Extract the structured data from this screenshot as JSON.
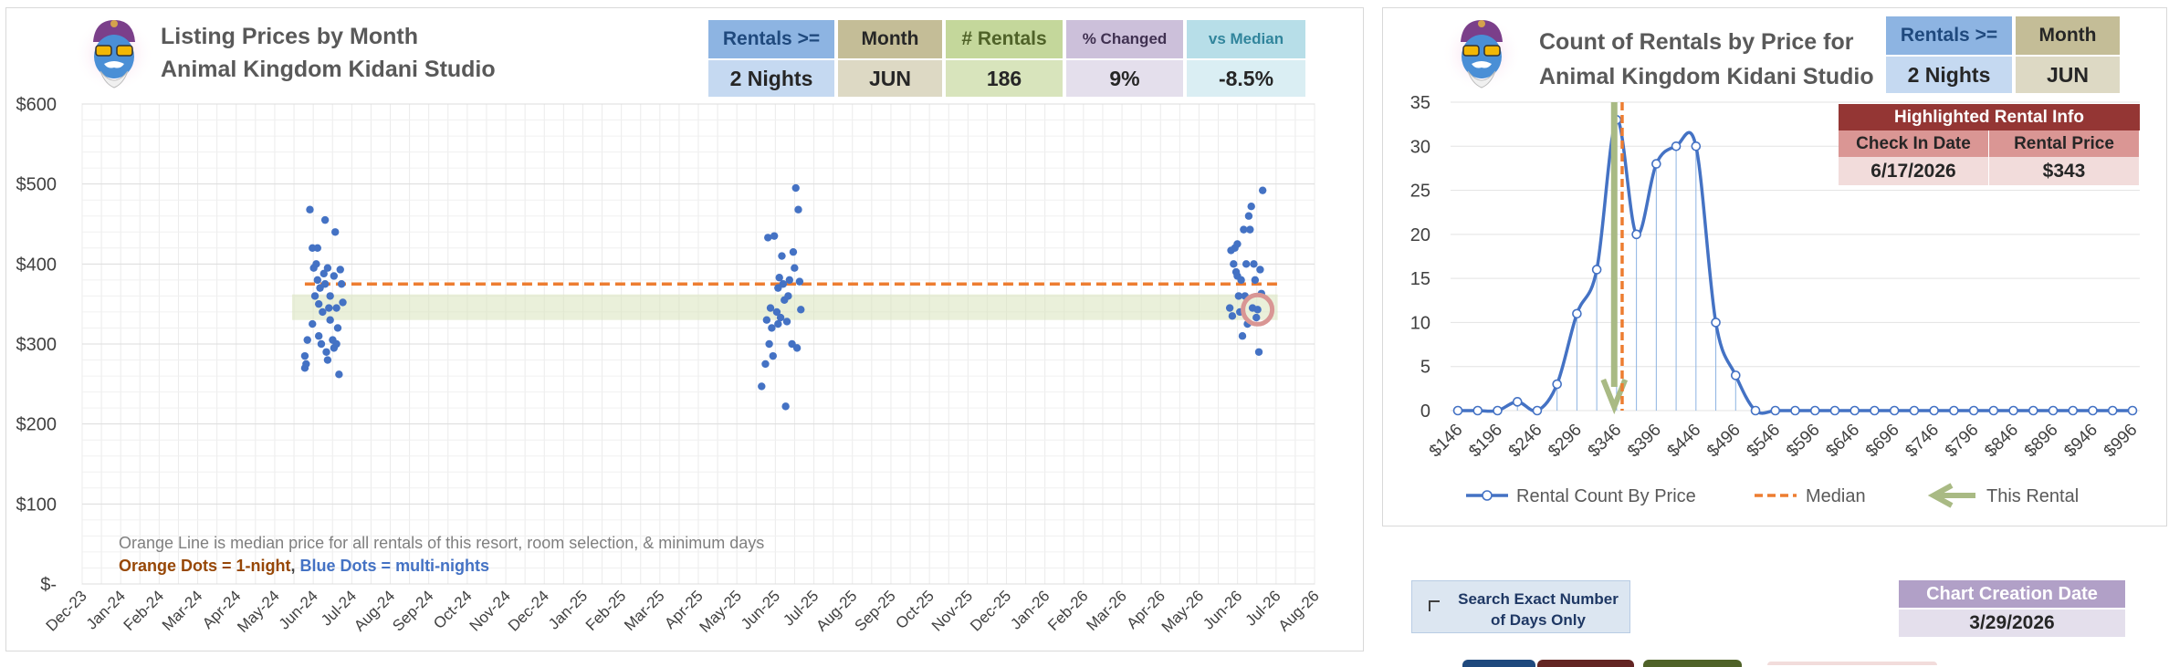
{
  "colors": {
    "blue_dots": "#4472c4",
    "orange_median": "#ed7d31",
    "band_green": "#d8e4bc",
    "arrow_green": "#a9ba84",
    "line_blue": "#4472c4"
  },
  "left": {
    "title_line1": "Listing Prices by Month",
    "title_line2": "Animal Kingdom Kidani Studio",
    "kpis": [
      {
        "header": "Rentals >=",
        "value": "2 Nights",
        "hd_bg": "#8db4e2",
        "hd_color": "#1f497d",
        "vl_bg": "#c5d9f1",
        "small": false
      },
      {
        "header": "Month",
        "value": "JUN",
        "hd_bg": "#c4bd97",
        "hd_color": "#262626",
        "vl_bg": "#ddd9c4",
        "small": false
      },
      {
        "header": "# Rentals",
        "value": "186",
        "hd_bg": "#c4d79b",
        "hd_color": "#4f6228",
        "vl_bg": "#d8e4bc",
        "small": false
      },
      {
        "header": "% Changed",
        "value": "9%",
        "hd_bg": "#ccc0da",
        "hd_color": "#403151",
        "vl_bg": "#e4dfec",
        "small": true
      },
      {
        "header": "vs Median",
        "value": "-8.5%",
        "hd_bg": "#b7dee8",
        "hd_color": "#31859c",
        "vl_bg": "#daeef3",
        "small": true
      }
    ],
    "note_line1": "Orange Line is median price for all rentals of this resort, room selection, & minimum days",
    "note_orange": "Orange Dots = 1-night",
    "note_sep": ", ",
    "note_blue": "Blue Dots = multi-nights"
  },
  "right": {
    "title_line1": "Count of Rentals by Price for",
    "title_line2": "Animal Kingdom Kidani Studio",
    "kpis": [
      {
        "header": "Rentals >=",
        "value": "2 Nights",
        "hd_bg": "#8db4e2",
        "hd_color": "#1f497d",
        "vl_bg": "#c5d9f1",
        "small": false
      },
      {
        "header": "Month",
        "value": "JUN",
        "hd_bg": "#c4bd97",
        "hd_color": "#262626",
        "vl_bg": "#ddd9c4",
        "small": false
      }
    ],
    "highlight": {
      "title": "Highlighted Rental Info",
      "col1_header": "Check In Date",
      "col2_header": "Rental Price",
      "col1_value": "6/17/2026",
      "col2_value": "$343"
    }
  },
  "controls": {
    "search_exact_label": "Search Exact Number of Days Only",
    "creation_header": "Chart Creation Date",
    "creation_value": "3/29/2026"
  },
  "chart_data": [
    {
      "type": "scatter",
      "title": "Listing Prices by Month",
      "subtitle": "Animal Kingdom Kidani Studio",
      "x_ticks": [
        "Dec-23",
        "Jan-24",
        "Feb-24",
        "Mar-24",
        "Apr-24",
        "May-24",
        "Jun-24",
        "Jul-24",
        "Aug-24",
        "Sep-24",
        "Oct-24",
        "Nov-24",
        "Dec-24",
        "Jan-25",
        "Feb-25",
        "Mar-25",
        "Apr-25",
        "May-25",
        "Jun-25",
        "Jul-25",
        "Aug-25",
        "Sep-25",
        "Oct-25",
        "Nov-25",
        "Dec-25",
        "Jan-26",
        "Feb-26",
        "Mar-26",
        "Apr-26",
        "May-26",
        "Jun-26",
        "Jul-26",
        "Aug-26"
      ],
      "y_ticks": [
        "$-",
        "$100",
        "$200",
        "$300",
        "$400",
        "$500",
        "$600"
      ],
      "ylim": [
        0,
        600
      ],
      "median_price": 375,
      "median_range": [
        "2024-05-25",
        "2026-06-30"
      ],
      "band": [
        330,
        362
      ],
      "highlighted_point": {
        "x": "2026-06-17",
        "y": 343
      },
      "series": [
        {
          "name": "Blue Dots = multi-nights",
          "points": [
            [
              "2024-05-25",
              270
            ],
            [
              "2024-05-25",
              285
            ],
            [
              "2024-05-26",
              275
            ],
            [
              "2024-05-27",
              305
            ],
            [
              "2024-05-29",
              468
            ],
            [
              "2024-05-31",
              420
            ],
            [
              "2024-05-31",
              325
            ],
            [
              "2024-06-01",
              395
            ],
            [
              "2024-06-02",
              360
            ],
            [
              "2024-06-03",
              400
            ],
            [
              "2024-06-04",
              420
            ],
            [
              "2024-06-04",
              380
            ],
            [
              "2024-06-05",
              350
            ],
            [
              "2024-06-05",
              310
            ],
            [
              "2024-06-06",
              370
            ],
            [
              "2024-06-07",
              300
            ],
            [
              "2024-06-08",
              340
            ],
            [
              "2024-06-09",
              388
            ],
            [
              "2024-06-10",
              455
            ],
            [
              "2024-06-10",
              375
            ],
            [
              "2024-06-11",
              290
            ],
            [
              "2024-06-12",
              280
            ],
            [
              "2024-06-12",
              395
            ],
            [
              "2024-06-13",
              345
            ],
            [
              "2024-06-14",
              360
            ],
            [
              "2024-06-14",
              330
            ],
            [
              "2024-06-16",
              305
            ],
            [
              "2024-06-17",
              385
            ],
            [
              "2024-06-17",
              295
            ],
            [
              "2024-06-18",
              440
            ],
            [
              "2024-06-19",
              345
            ],
            [
              "2024-06-19",
              300
            ],
            [
              "2024-06-20",
              320
            ],
            [
              "2024-06-21",
              262
            ],
            [
              "2024-06-22",
              393
            ],
            [
              "2024-06-23",
              375
            ],
            [
              "2024-06-24",
              352
            ],
            [
              "2025-05-21",
              247
            ],
            [
              "2025-05-24",
              275
            ],
            [
              "2025-05-25",
              330
            ],
            [
              "2025-05-26",
              433
            ],
            [
              "2025-05-27",
              300
            ],
            [
              "2025-05-28",
              345
            ],
            [
              "2025-05-29",
              320
            ],
            [
              "2025-05-30",
              285
            ],
            [
              "2025-05-31",
              435
            ],
            [
              "2025-06-02",
              340
            ],
            [
              "2025-06-03",
              370
            ],
            [
              "2025-06-03",
              325
            ],
            [
              "2025-06-04",
              383
            ],
            [
              "2025-06-05",
              333
            ],
            [
              "2025-06-06",
              410
            ],
            [
              "2025-06-07",
              375
            ],
            [
              "2025-06-08",
              355
            ],
            [
              "2025-06-09",
              222
            ],
            [
              "2025-06-10",
              328
            ],
            [
              "2025-06-11",
              360
            ],
            [
              "2025-06-12",
              380
            ],
            [
              "2025-06-14",
              300
            ],
            [
              "2025-06-15",
              415
            ],
            [
              "2025-06-16",
              395
            ],
            [
              "2025-06-17",
              495
            ],
            [
              "2025-06-18",
              295
            ],
            [
              "2025-06-19",
              468
            ],
            [
              "2025-06-20",
              378
            ],
            [
              "2025-06-21",
              343
            ],
            [
              "2026-05-26",
              345
            ],
            [
              "2026-05-27",
              417
            ],
            [
              "2026-05-28",
              335
            ],
            [
              "2026-05-29",
              400
            ],
            [
              "2026-05-30",
              420
            ],
            [
              "2026-05-31",
              390
            ],
            [
              "2026-06-01",
              425
            ],
            [
              "2026-06-01",
              385
            ],
            [
              "2026-06-02",
              360
            ],
            [
              "2026-06-03",
              340
            ],
            [
              "2026-06-04",
              380
            ],
            [
              "2026-06-05",
              310
            ],
            [
              "2026-06-06",
              443
            ],
            [
              "2026-06-07",
              360
            ],
            [
              "2026-06-08",
              400
            ],
            [
              "2026-06-09",
              325
            ],
            [
              "2026-06-10",
              460
            ],
            [
              "2026-06-11",
              443
            ],
            [
              "2026-06-12",
              472
            ],
            [
              "2026-06-13",
              345
            ],
            [
              "2026-06-14",
              400
            ],
            [
              "2026-06-15",
              380
            ],
            [
              "2026-06-16",
              333
            ],
            [
              "2026-06-17",
              343
            ],
            [
              "2026-06-18",
              290
            ],
            [
              "2026-06-19",
              393
            ],
            [
              "2026-06-20",
              363
            ],
            [
              "2026-06-21",
              492
            ]
          ]
        }
      ]
    },
    {
      "type": "line",
      "title": "Count of Rentals by Price for",
      "subtitle": "Animal Kingdom Kidani Studio",
      "categories": [
        "$146",
        "$171",
        "$196",
        "$221",
        "$246",
        "$271",
        "$296",
        "$321",
        "$346",
        "$371",
        "$396",
        "$421",
        "$446",
        "$471",
        "$496",
        "$521",
        "$546",
        "$571",
        "$596",
        "$621",
        "$646",
        "$671",
        "$696",
        "$721",
        "$746",
        "$771",
        "$796",
        "$821",
        "$846",
        "$871",
        "$896",
        "$921",
        "$946",
        "$971",
        "$996"
      ],
      "x_tick_labels": [
        "$146",
        "$196",
        "$246",
        "$296",
        "$346",
        "$396",
        "$446",
        "$496",
        "$546",
        "$596",
        "$646",
        "$696",
        "$746",
        "$796",
        "$846",
        "$896",
        "$946",
        "$996"
      ],
      "ylim": [
        0,
        35
      ],
      "y_ticks": [
        0,
        5,
        10,
        15,
        20,
        25,
        30,
        35
      ],
      "series": [
        {
          "name": "Rental Count By Price",
          "values": [
            0,
            0,
            0,
            1,
            0,
            3,
            11,
            16,
            33,
            20,
            28,
            30,
            30,
            10,
            4,
            0,
            0,
            0,
            0,
            0,
            0,
            0,
            0,
            0,
            0,
            0,
            0,
            0,
            0,
            0,
            0,
            0,
            0,
            0,
            0
          ]
        }
      ],
      "median": 353,
      "this_rental": 343,
      "legend": [
        "Rental Count By Price",
        "Median",
        "This Rental"
      ],
      "legend_position": "bottom"
    }
  ]
}
